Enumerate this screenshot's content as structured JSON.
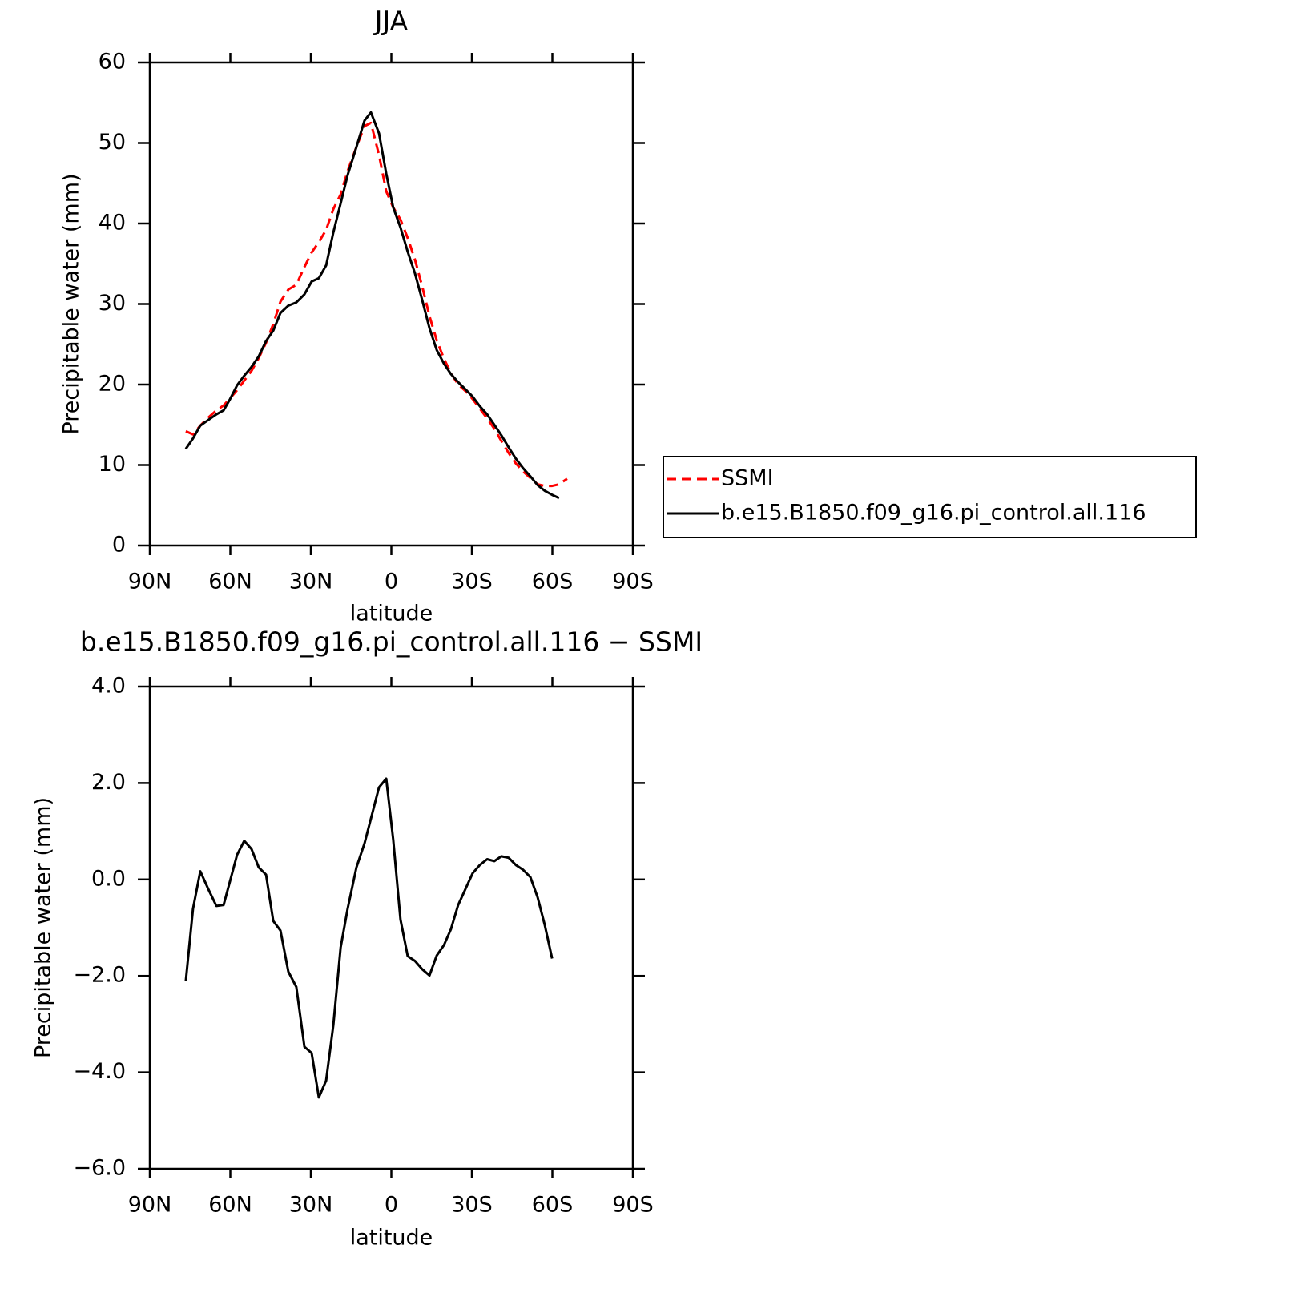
{
  "chart_data": [
    {
      "type": "line",
      "title": "JJA",
      "xlabel": "latitude",
      "ylabel": "Precipitable water (mm)",
      "x": [
        76.6,
        73.9,
        71.2,
        68.2,
        65.2,
        62.5,
        60.1,
        57.5,
        54.8,
        52.1,
        49.4,
        46.7,
        44.0,
        41.3,
        38.4,
        35.4,
        32.4,
        29.7,
        27.0,
        24.3,
        21.6,
        18.9,
        16.3,
        13.0,
        10.0,
        7.6,
        4.6,
        1.9,
        -0.7,
        -3.4,
        -6.1,
        -8.8,
        -11.5,
        -14.2,
        -16.9,
        -19.6,
        -22.2,
        -24.9,
        -27.6,
        -30.3,
        -33.0,
        -35.7,
        -38.4,
        -41.0,
        -43.7,
        -46.4,
        -49.1,
        -51.8,
        -54.5,
        -57.2,
        -59.9,
        -62.5,
        -65.5
      ],
      "series": [
        {
          "name": "SSMI",
          "color": "#ff0000",
          "line_style": "dashed",
          "values": [
            14.2,
            13.8,
            14.9,
            15.9,
            16.8,
            17.4,
            18.3,
            19.3,
            20.5,
            21.7,
            23.3,
            25.2,
            27.5,
            30.3,
            31.8,
            32.4,
            34.6,
            36.4,
            37.7,
            39.2,
            41.8,
            43.6,
            46.5,
            49.5,
            52.1,
            52.5,
            48.5,
            44.0,
            42.0,
            40.5,
            38.2,
            35.5,
            32.2,
            28.5,
            25.5,
            23.2,
            21.4,
            20.0,
            19.2,
            18.2,
            17.0,
            15.8,
            14.5,
            13.0,
            11.5,
            10.2,
            9.2,
            8.4,
            7.6,
            7.4,
            7.4,
            7.6,
            8.3
          ]
        },
        {
          "name": "b.e15.B1850.f09_g16.pi_control.all.116",
          "color": "#000000",
          "line_style": "solid",
          "values": [
            12.0,
            13.3,
            14.9,
            15.6,
            16.3,
            16.8,
            18.2,
            19.9,
            21.1,
            22.2,
            23.5,
            25.4,
            26.7,
            28.9,
            29.8,
            30.2,
            31.2,
            32.8,
            33.2,
            34.8,
            38.9,
            42.5,
            46.0,
            49.5,
            52.8,
            53.8,
            51.2,
            46.2,
            42.0,
            39.5,
            36.5,
            33.8,
            30.5,
            27.0,
            24.3,
            22.6,
            21.3,
            20.3,
            19.4,
            18.5,
            17.3,
            16.3,
            15.0,
            13.7,
            12.2,
            10.8,
            9.6,
            8.6,
            7.5,
            6.8,
            6.3,
            5.9,
            null
          ]
        }
      ],
      "xlim": [
        90,
        -90
      ],
      "xticks": [
        {
          "value": 90,
          "label": "90N"
        },
        {
          "value": 60,
          "label": "60N"
        },
        {
          "value": 30,
          "label": "30N"
        },
        0,
        {
          "value": -30,
          "label": "30S"
        },
        {
          "value": -60,
          "label": "60S"
        },
        {
          "value": -90,
          "label": "90S"
        }
      ],
      "ylim": [
        0,
        60
      ],
      "yticks": [
        0,
        10,
        20,
        30,
        40,
        50,
        60
      ],
      "legend": "right"
    },
    {
      "type": "line",
      "title": "b.e15.B1850.f09_g16.pi_control.all.116 − SSMI",
      "xlabel": "latitude",
      "ylabel": "Precipitable water (mm)",
      "x": [
        76.6,
        73.9,
        71.2,
        68.2,
        65.2,
        62.5,
        60.1,
        57.5,
        54.8,
        52.1,
        49.4,
        46.7,
        44.0,
        41.3,
        38.4,
        35.4,
        32.4,
        29.7,
        27.0,
        24.3,
        21.6,
        18.9,
        16.3,
        13.0,
        10.0,
        7.6,
        4.6,
        1.9,
        -0.7,
        -3.4,
        -6.1,
        -8.8,
        -11.5,
        -14.2,
        -16.9,
        -19.6,
        -22.2,
        -24.9,
        -27.6,
        -30.3,
        -33.0,
        -35.7,
        -38.4,
        -41.0,
        -43.7,
        -46.4,
        -49.1,
        -51.8,
        -54.5,
        -57.2,
        -59.9
      ],
      "values": [
        -2.11,
        -0.61,
        0.17,
        -0.2,
        -0.55,
        -0.53,
        -0.03,
        0.51,
        0.8,
        0.63,
        0.25,
        0.1,
        -0.86,
        -1.06,
        -1.91,
        -2.23,
        -3.47,
        -3.6,
        -4.52,
        -4.17,
        -3.02,
        -1.41,
        -0.61,
        0.25,
        0.75,
        1.26,
        1.91,
        2.09,
        0.83,
        -0.83,
        -1.59,
        -1.69,
        -1.86,
        -1.99,
        -1.58,
        -1.36,
        -1.03,
        -0.53,
        -0.2,
        0.13,
        0.3,
        0.42,
        0.38,
        0.48,
        0.45,
        0.3,
        0.2,
        0.05,
        -0.37,
        -0.95,
        -1.64
      ],
      "color": "#000000",
      "xlim": [
        90,
        -90
      ],
      "xticks": [
        {
          "value": 90,
          "label": "90N"
        },
        {
          "value": 60,
          "label": "60N"
        },
        {
          "value": 30,
          "label": "30N"
        },
        0,
        {
          "value": -30,
          "label": "30S"
        },
        {
          "value": -60,
          "label": "60S"
        },
        {
          "value": -90,
          "label": "90S"
        }
      ],
      "ylim": [
        -6,
        4
      ],
      "yticks": [
        {
          "value": -6,
          "label": "−6.0"
        },
        {
          "value": -4,
          "label": "−4.0"
        },
        {
          "value": -2,
          "label": "−2.0"
        },
        {
          "value": 0,
          "label": "0.0"
        },
        {
          "value": 2,
          "label": "2.0"
        },
        {
          "value": 4,
          "label": "4.0"
        }
      ]
    }
  ]
}
